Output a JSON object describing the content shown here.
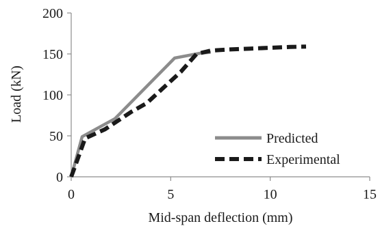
{
  "chart_data": {
    "type": "line",
    "xlabel": "Mid-span deflection (mm)",
    "ylabel": "Load (kN)",
    "xlim": [
      0,
      15
    ],
    "ylim": [
      0,
      200
    ],
    "x_ticks": [
      "0",
      "5",
      "10",
      "15"
    ],
    "y_ticks": [
      "0",
      "50",
      "100",
      "150",
      "200"
    ],
    "grid": false,
    "legend_position": "bottom-right",
    "series": [
      {
        "name": "Predicted",
        "color": "#8c8c8c",
        "style": "solid",
        "points": [
          [
            0,
            0
          ],
          [
            0.55,
            49
          ],
          [
            2.2,
            71
          ],
          [
            5.2,
            145
          ],
          [
            6.5,
            151
          ],
          [
            7.0,
            152
          ]
        ]
      },
      {
        "name": "Experimental",
        "color": "#1a1a1a",
        "style": "dashed",
        "points": [
          [
            0,
            0
          ],
          [
            0.3,
            20
          ],
          [
            0.7,
            47
          ],
          [
            1.7,
            58
          ],
          [
            3.0,
            79
          ],
          [
            3.8,
            90
          ],
          [
            4.6,
            108
          ],
          [
            5.5,
            128
          ],
          [
            6.3,
            150
          ],
          [
            7.0,
            154
          ],
          [
            8.0,
            155.5
          ],
          [
            9.0,
            156.5
          ],
          [
            10.0,
            157.5
          ],
          [
            11.0,
            158.5
          ],
          [
            11.8,
            159
          ]
        ]
      }
    ]
  }
}
